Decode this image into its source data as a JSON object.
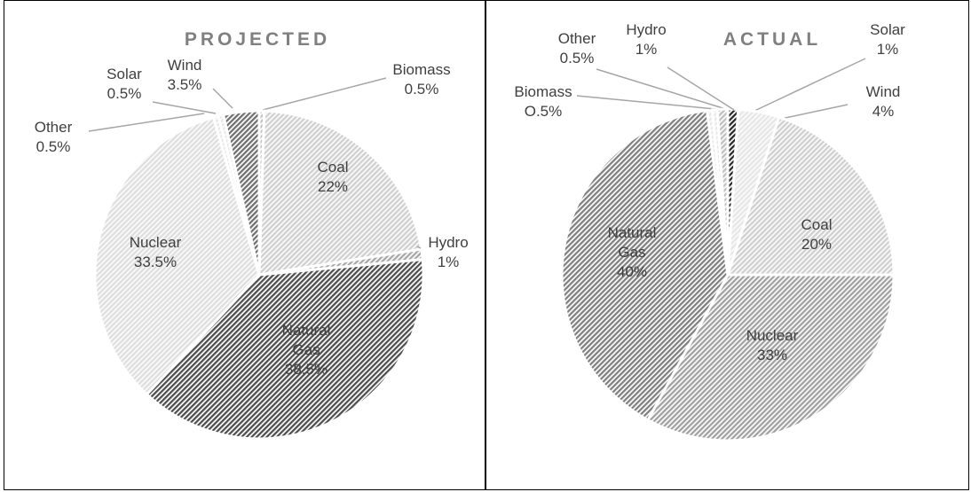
{
  "chart_data": [
    {
      "type": "pie",
      "title": "PROJECTED",
      "categories": [
        "Biomass",
        "Coal",
        "Hydro",
        "Natural Gas",
        "Nuclear",
        "Other",
        "Solar",
        "Wind"
      ],
      "values": [
        0.5,
        22,
        1,
        38.5,
        33.5,
        0.5,
        0.5,
        3.5
      ],
      "value_labels": [
        "0.5%",
        "22%",
        "1%",
        "38.5%",
        "33.5%",
        "0.5%",
        "0.5%",
        "3.5%"
      ],
      "colors": [
        "#bfbfbf",
        "#cfcfcf",
        "#a6a6a6",
        "#4d4d4d",
        "#dedede",
        "#e6e6e6",
        "#e6e6e6",
        "#6f6f6f"
      ]
    },
    {
      "type": "pie",
      "title": "ACTUAL",
      "categories": [
        "Solar",
        "Wind",
        "Coal",
        "Nuclear",
        "Natural Gas",
        "Biomass",
        "Other",
        "Hydro"
      ],
      "values": [
        1,
        4,
        20,
        33,
        40,
        0.5,
        0.5,
        1
      ],
      "value_labels": [
        "1%",
        "4%",
        "20%",
        "33%",
        "40%",
        "O.5%",
        "0.5%",
        "1%"
      ],
      "colors": [
        "#262626",
        "#e6e6e6",
        "#cfcfcf",
        "#a0a0a0",
        "#7f7f7f",
        "#e6e6e6",
        "#e6e6e6",
        "#bfbfbf"
      ]
    }
  ]
}
